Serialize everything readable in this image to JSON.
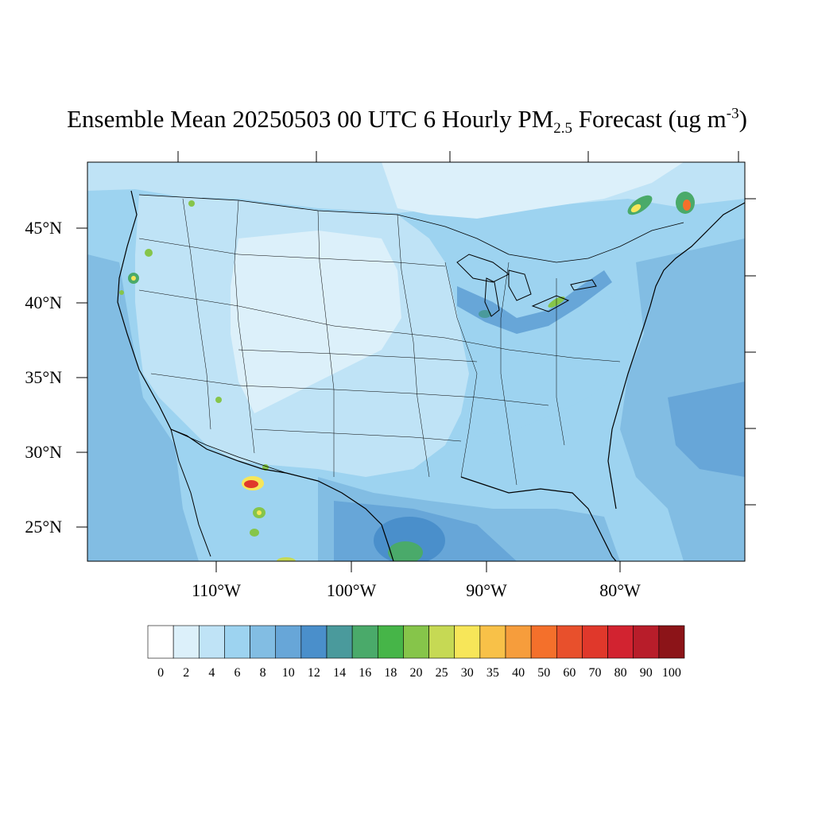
{
  "title": {
    "prefix": "Ensemble Mean 20250503 00 UTC 6 Hourly PM",
    "sub": "2.5",
    "suffix": " Forecast (ug m",
    "sup": "-3",
    "close": ")"
  },
  "lat_labels": [
    "45°N",
    "40°N",
    "35°N",
    "30°N",
    "25°N"
  ],
  "lon_labels": [
    "110°W",
    "100°W",
    "90°W",
    "80°W"
  ],
  "colorbar": {
    "levels": [
      "0",
      "2",
      "4",
      "6",
      "8",
      "10",
      "12",
      "14",
      "16",
      "18",
      "20",
      "25",
      "30",
      "35",
      "40",
      "50",
      "60",
      "70",
      "80",
      "90",
      "100"
    ],
    "colors": [
      "#ffffff",
      "#dcf0fa",
      "#bfe3f6",
      "#9dd3f0",
      "#82bde3",
      "#67a6d8",
      "#4a8fcb",
      "#4a9a9c",
      "#4aaa6a",
      "#46b548",
      "#86c54a",
      "#c6d954",
      "#f7e659",
      "#f8c148",
      "#f69d3c",
      "#f4702b",
      "#e8502c",
      "#e0382b",
      "#d22330",
      "#b81d2a",
      "#8c1418"
    ]
  }
}
